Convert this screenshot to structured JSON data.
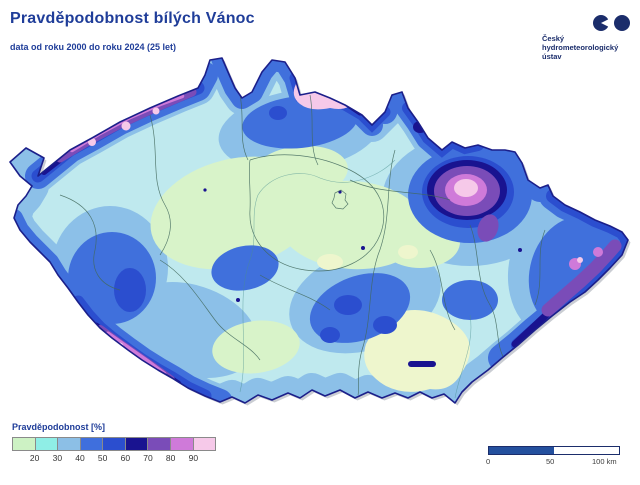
{
  "header": {
    "title": "Pravděpodobnost bílých Vánoc",
    "subtitle": "data od roku 2000 do roku 2024 (25 let)",
    "accent_color": "#1f3d99"
  },
  "logo": {
    "org_lines": [
      "Český",
      "hydrometeorologický",
      "ústav"
    ],
    "color": "#1b2d6b"
  },
  "map": {
    "region": "Česká republika",
    "outline_color": "#1b1f8a"
  },
  "legend": {
    "label": "Pravděpodobnost [%]",
    "ticks": [
      "20",
      "30",
      "40",
      "50",
      "60",
      "70",
      "80",
      "90"
    ],
    "colors": [
      "#cdf2c4",
      "#8feee6",
      "#8cbfe6",
      "#3f6fdd",
      "#2b4ecf",
      "#191390",
      "#7a4cb8",
      "#cf7ad9",
      "#f6c9e9"
    ]
  },
  "scalebar": {
    "start": "0",
    "mid": "50",
    "end": "100 km",
    "fill_color": "#24509e"
  }
}
